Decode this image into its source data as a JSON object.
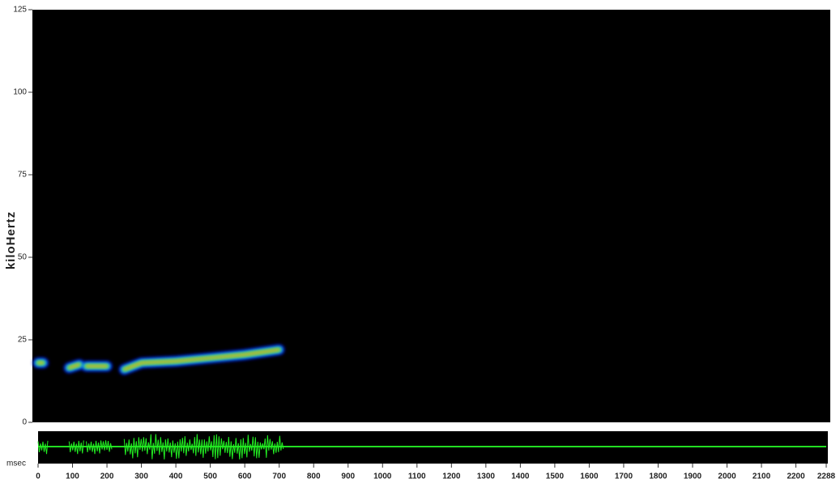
{
  "chart_data": {
    "type": "spectrogram",
    "ylabel": "kiloHertz",
    "xlabel": "msec",
    "x": [
      0,
      15,
      20,
      90,
      120,
      130,
      140,
      200,
      210,
      250,
      300,
      400,
      500,
      600,
      700
    ],
    "values": [
      18,
      18,
      null,
      16.5,
      17.5,
      null,
      17,
      17,
      null,
      16,
      18,
      18.5,
      19.5,
      20.5,
      22
    ],
    "xlim": [
      0,
      2288
    ],
    "ylim": [
      0,
      125
    ],
    "xticks": [
      0,
      100,
      200,
      300,
      400,
      500,
      600,
      700,
      800,
      900,
      1000,
      1100,
      1200,
      1300,
      1400,
      1500,
      1600,
      1700,
      1800,
      1900,
      2000,
      2100,
      2200,
      2288
    ],
    "yticks": [
      0,
      25,
      50,
      75,
      100,
      125
    ]
  }
}
